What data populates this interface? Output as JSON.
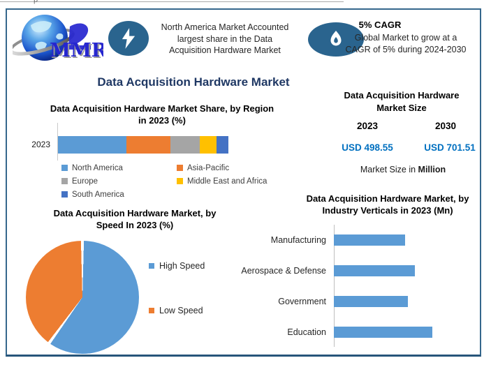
{
  "page": {
    "top_fragment": "p"
  },
  "logo": {
    "text": "MMR"
  },
  "callouts": [
    {
      "icon": "lightning-icon",
      "lines": [
        "North America Market Accounted",
        "largest share in the Data",
        "Acquisition Hardware Market"
      ]
    },
    {
      "icon": "flame-icon",
      "title": "5% CAGR",
      "lines": [
        "Global Market to grow at a",
        "CAGR of 5% during 2024-2030"
      ]
    }
  ],
  "main_title": "Data Acquisition Hardware Market",
  "market_size": {
    "title": "Data Acquisition Hardware Market Size",
    "years": [
      "2023",
      "2030"
    ],
    "values": [
      "USD 498.55",
      "USD 701.51"
    ],
    "caption_prefix": "Market Size in ",
    "caption_bold": "Million"
  },
  "colors": {
    "accent_navy": "#1F3864",
    "value_blue": "#0070C0",
    "icon_ellipse": "#2A648E",
    "frame_border": "#35678C",
    "series_blue": "#5B9BD5",
    "series_orange": "#ED7D31",
    "series_gray": "#A5A5A5",
    "series_yellow": "#FFC000",
    "series_darkblue": "#4472C4",
    "logo_blue": "#2626CF"
  },
  "chart_data": [
    {
      "type": "bar",
      "subtype": "stacked-horizontal",
      "title": "Data Acquisition Hardware Market Share, by Region in 2023 (%)",
      "categories": [
        "2023"
      ],
      "units": "%",
      "legend_position": "bottom-two-columns",
      "series": [
        {
          "name": "North America",
          "value": 40,
          "color": "#5B9BD5"
        },
        {
          "name": "Asia-Pacific",
          "value": 26,
          "color": "#ED7D31"
        },
        {
          "name": "Europe",
          "value": 17,
          "color": "#A5A5A5"
        },
        {
          "name": "Middle East and Africa",
          "value": 10,
          "color": "#FFC000"
        },
        {
          "name": "South America",
          "value": 7,
          "color": "#4472C4"
        }
      ]
    },
    {
      "type": "pie",
      "title": "Data Acquisition Hardware Market, by Speed In 2023 (%)",
      "units": "%",
      "legend_position": "right",
      "slices": [
        {
          "label": "High Speed",
          "value": 60,
          "color": "#5B9BD5"
        },
        {
          "label": "Low Speed",
          "value": 40,
          "color": "#ED7D31"
        }
      ]
    },
    {
      "type": "bar",
      "subtype": "horizontal",
      "title": "Data Acquisition Hardware Market, by Industry Verticals in 2023 (Mn)",
      "units": "Mn",
      "color": "#5B9BD5",
      "categories": [
        "Manufacturing",
        "Aerospace & Defense",
        "Government",
        "Education"
      ],
      "values": [
        102,
        116,
        106,
        141
      ],
      "xlim": [
        0,
        160
      ],
      "grid": false
    }
  ]
}
